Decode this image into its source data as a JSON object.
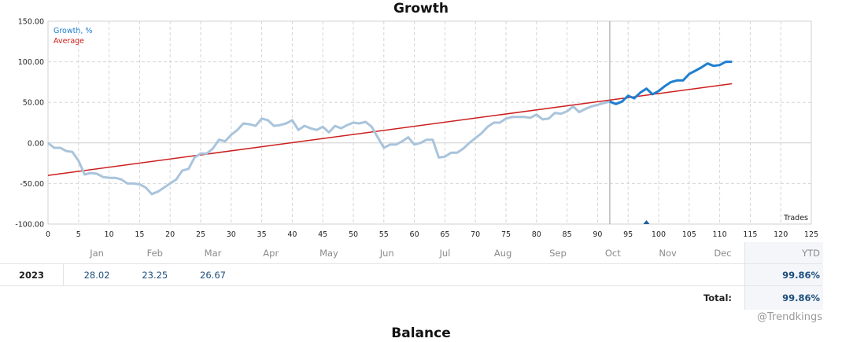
{
  "title": "Growth",
  "balance_title": "Balance",
  "watermark": "@Trendkings",
  "chart_data": {
    "type": "line",
    "title": "Growth",
    "xlabel": "Trades",
    "ylabel": "",
    "xlim": [
      0,
      125
    ],
    "ylim": [
      -100,
      150
    ],
    "x_ticks": [
      0,
      5,
      10,
      15,
      20,
      25,
      30,
      35,
      40,
      45,
      50,
      55,
      60,
      65,
      70,
      75,
      80,
      85,
      90,
      95,
      100,
      105,
      110,
      115,
      120,
      125
    ],
    "y_ticks": [
      -100,
      -50,
      0,
      50,
      100,
      150
    ],
    "y_tick_labels": [
      "-100.00",
      "-50.00",
      "0.00",
      "50.00",
      "100.00",
      "150.00"
    ],
    "grid": true,
    "legend_position": "top-left",
    "months": [
      "Jan",
      "Feb",
      "Mar",
      "Apr",
      "May",
      "Jun",
      "Jul",
      "Aug",
      "Sep",
      "Oct",
      "Nov",
      "Dec"
    ],
    "divider_x": 92,
    "marker_x": 98,
    "colors": {
      "history": "#a9c4db",
      "current": "#1f7fd0",
      "average": "#cc1f1f",
      "divider": "#999999",
      "marker": "#1f5f9c"
    },
    "series": [
      {
        "name": "Growth, %",
        "color": "#1f7fd0",
        "points": [
          [
            0,
            0
          ],
          [
            1,
            -6
          ],
          [
            2,
            -6
          ],
          [
            3,
            -10
          ],
          [
            4,
            -11
          ],
          [
            5,
            -22
          ],
          [
            6,
            -39
          ],
          [
            7,
            -37
          ],
          [
            8,
            -38
          ],
          [
            9,
            -42
          ],
          [
            10,
            -43
          ],
          [
            11,
            -43
          ],
          [
            12,
            -45
          ],
          [
            13,
            -50
          ],
          [
            14,
            -50
          ],
          [
            15,
            -51
          ],
          [
            16,
            -55
          ],
          [
            17,
            -63
          ],
          [
            18,
            -60
          ],
          [
            19,
            -55
          ],
          [
            20,
            -50
          ],
          [
            21,
            -45
          ],
          [
            22,
            -34
          ],
          [
            23,
            -32
          ],
          [
            24,
            -18
          ],
          [
            25,
            -13
          ],
          [
            26,
            -13
          ],
          [
            27,
            -7
          ],
          [
            28,
            4
          ],
          [
            29,
            2
          ],
          [
            30,
            10
          ],
          [
            31,
            16
          ],
          [
            32,
            24
          ],
          [
            33,
            23
          ],
          [
            34,
            21
          ],
          [
            35,
            30
          ],
          [
            36,
            28
          ],
          [
            37,
            21
          ],
          [
            38,
            22
          ],
          [
            39,
            24
          ],
          [
            40,
            28
          ],
          [
            41,
            16
          ],
          [
            42,
            21
          ],
          [
            43,
            18
          ],
          [
            44,
            16
          ],
          [
            45,
            20
          ],
          [
            46,
            13
          ],
          [
            47,
            21
          ],
          [
            48,
            18
          ],
          [
            49,
            22
          ],
          [
            50,
            25
          ],
          [
            51,
            24
          ],
          [
            52,
            26
          ],
          [
            53,
            20
          ],
          [
            54,
            7
          ],
          [
            55,
            -6
          ],
          [
            56,
            -2
          ],
          [
            57,
            -2
          ],
          [
            58,
            2
          ],
          [
            59,
            7
          ],
          [
            60,
            -2
          ],
          [
            61,
            0
          ],
          [
            62,
            4
          ],
          [
            63,
            4
          ],
          [
            64,
            -18
          ],
          [
            65,
            -17
          ],
          [
            66,
            -12
          ],
          [
            67,
            -12
          ],
          [
            68,
            -7
          ],
          [
            69,
            0
          ],
          [
            70,
            6
          ],
          [
            71,
            12
          ],
          [
            72,
            20
          ],
          [
            73,
            25
          ],
          [
            74,
            25
          ],
          [
            75,
            30
          ],
          [
            76,
            32
          ],
          [
            77,
            32
          ],
          [
            78,
            32
          ],
          [
            79,
            31
          ],
          [
            80,
            35
          ],
          [
            81,
            29
          ],
          [
            82,
            30
          ],
          [
            83,
            37
          ],
          [
            84,
            36
          ],
          [
            85,
            39
          ],
          [
            86,
            45
          ],
          [
            87,
            38
          ],
          [
            88,
            42
          ],
          [
            89,
            45
          ],
          [
            90,
            47
          ],
          [
            91,
            49
          ],
          [
            92,
            51
          ],
          [
            93,
            48
          ],
          [
            94,
            51
          ],
          [
            95,
            58
          ],
          [
            96,
            55
          ],
          [
            97,
            62
          ],
          [
            98,
            67
          ],
          [
            99,
            60
          ],
          [
            100,
            64
          ],
          [
            101,
            70
          ],
          [
            102,
            75
          ],
          [
            103,
            77
          ],
          [
            104,
            77
          ],
          [
            105,
            85
          ],
          [
            106,
            89
          ],
          [
            107,
            93
          ],
          [
            108,
            98
          ],
          [
            109,
            95
          ],
          [
            110,
            96
          ],
          [
            111,
            100
          ],
          [
            112,
            100
          ]
        ]
      },
      {
        "name": "Average",
        "color": "#cc1f1f",
        "points": [
          [
            0,
            -40
          ],
          [
            112,
            73
          ]
        ]
      }
    ]
  },
  "table": {
    "months": [
      "Jan",
      "Feb",
      "Mar",
      "Apr",
      "May",
      "Jun",
      "Jul",
      "Aug",
      "Sep",
      "Oct",
      "Nov",
      "Dec"
    ],
    "ytd_label": "YTD",
    "rows": [
      {
        "year": "2023",
        "values": [
          "28.02",
          "23.25",
          "26.67",
          "",
          "",
          "",
          "",
          "",
          "",
          "",
          "",
          ""
        ],
        "ytd": "99.86%"
      }
    ],
    "total_label": "Total:",
    "total_value": "99.86%"
  }
}
